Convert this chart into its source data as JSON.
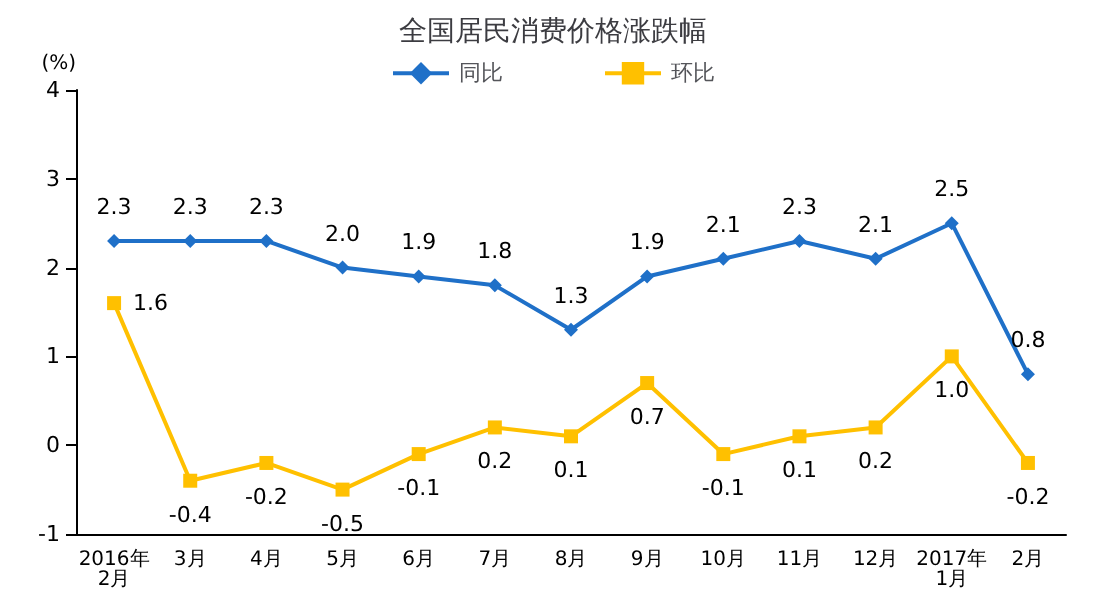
{
  "chart_data": {
    "type": "line",
    "title": "全国居民消费价格涨跌幅",
    "ylabel": "(%)",
    "categories": [
      "2016年\n2月",
      "3月",
      "4月",
      "5月",
      "6月",
      "7月",
      "8月",
      "9月",
      "10月",
      "11月",
      "12月",
      "2017年\n1月",
      "2月"
    ],
    "series": [
      {
        "name": "同比",
        "color": "#1f70c8",
        "marker": "diamond",
        "values": [
          2.3,
          2.3,
          2.3,
          2.0,
          1.9,
          1.8,
          1.3,
          1.9,
          2.1,
          2.3,
          2.1,
          2.5,
          0.8
        ],
        "value_labels": [
          "2.3",
          "2.3",
          "2.3",
          "2.0",
          "1.9",
          "1.8",
          "1.3",
          "1.9",
          "2.1",
          "2.3",
          "2.1",
          "2.5",
          "0.8"
        ]
      },
      {
        "name": "环比",
        "color": "#ffc000",
        "marker": "square",
        "values": [
          1.6,
          -0.4,
          -0.2,
          -0.5,
          -0.1,
          0.2,
          0.1,
          0.7,
          -0.1,
          0.1,
          0.2,
          1.0,
          -0.2
        ],
        "value_labels": [
          "1.6",
          "-0.4",
          "-0.2",
          "-0.5",
          "-0.1",
          "0.2",
          "0.1",
          "0.7",
          "-0.1",
          "0.1",
          "0.2",
          "1.0",
          "-0.2"
        ]
      }
    ],
    "ylim": [
      -1,
      4
    ],
    "yticks": [
      -1,
      0,
      1,
      2,
      3,
      4
    ],
    "grid": false,
    "legend": "top"
  }
}
